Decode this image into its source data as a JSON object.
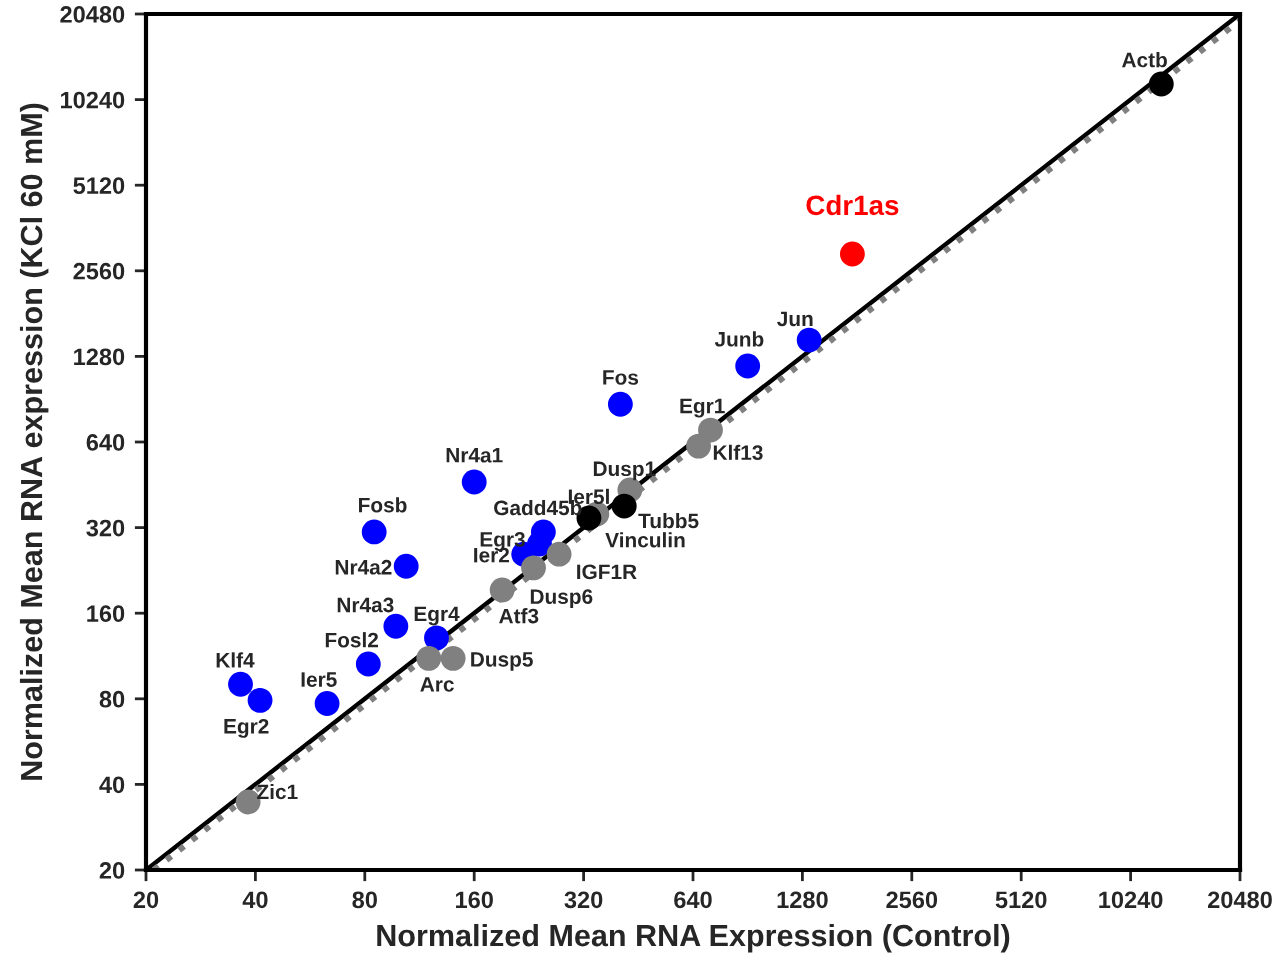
{
  "chart_data": {
    "type": "scatter",
    "xlabel": "Normalized Mean RNA Expression (Control)",
    "ylabel": "Normalized Mean RNA expression (KCl 60 mM)",
    "log": "xy",
    "xlim": [
      20,
      20480
    ],
    "ylim": [
      20,
      20480
    ],
    "xticks": [
      20,
      40,
      80,
      160,
      320,
      640,
      1280,
      2560,
      5120,
      10240,
      20480
    ],
    "yticks": [
      20,
      40,
      80,
      160,
      320,
      640,
      1280,
      2560,
      5120,
      10240,
      20480
    ],
    "grid": false,
    "marker": "circle",
    "series": [
      {
        "type": "line",
        "marker": "none",
        "color": "#000000",
        "line_style": "solid",
        "x": [
          20,
          20480
        ],
        "values": [
          20,
          20480
        ]
      },
      {
        "type": "line",
        "marker": "none",
        "color": "#808080",
        "line_style": "dotted",
        "x": [
          21,
          20480
        ],
        "values": [
          20,
          19450
        ]
      },
      {
        "color": "#0000ff",
        "x": [
          36.4,
          41.2,
          63,
          81.8,
          97.4,
          84.9,
          104,
          160,
          126,
          219,
          242,
          248,
          404,
          905,
          1336
        ],
        "values": [
          90,
          79,
          77,
          106,
          144,
          309,
          234,
          463,
          131,
          258,
          280,
          309,
          869,
          1184,
          1461
        ]
      },
      {
        "color": "#808080",
        "x": [
          38.2,
          120,
          140,
          191,
          233,
          274,
          348,
          429,
          715,
          663
        ],
        "values": [
          34.7,
          111,
          111,
          193,
          231,
          258,
          357,
          434,
          705,
          619
        ]
      },
      {
        "color": "#000000",
        "x": [
          331,
          414,
          12440
        ],
        "values": [
          346,
          381,
          11620
        ]
      },
      {
        "name": "Cdr1as",
        "color": "#ff0000",
        "x": [
          1757
        ],
        "values": [
          2933
        ]
      }
    ],
    "annotations": [
      {
        "text": "Zic1",
        "x": 38.2,
        "y": 34.7
      },
      {
        "text": "Klf4",
        "x": 36.4,
        "y": 90
      },
      {
        "text": "Egr2",
        "x": 41.2,
        "y": 79
      },
      {
        "text": "Ier5",
        "x": 63,
        "y": 77
      },
      {
        "text": "Fosl2",
        "x": 81.8,
        "y": 106
      },
      {
        "text": "Nr4a3",
        "x": 97.4,
        "y": 144
      },
      {
        "text": "Fosb",
        "x": 84.9,
        "y": 309
      },
      {
        "text": "Nr4a2",
        "x": 104,
        "y": 234
      },
      {
        "text": "Nr4a1",
        "x": 160,
        "y": 463
      },
      {
        "text": "Egr4",
        "x": 126,
        "y": 131
      },
      {
        "text": "Arc",
        "x": 120,
        "y": 111
      },
      {
        "text": "Dusp5",
        "x": 140,
        "y": 111
      },
      {
        "text": "Atf3",
        "x": 191,
        "y": 193
      },
      {
        "text": "Ier2",
        "x": 219,
        "y": 258
      },
      {
        "text": "Egr3",
        "x": 242,
        "y": 280
      },
      {
        "text": "Gadd45b",
        "x": 248,
        "y": 309
      },
      {
        "text": "Dusp6",
        "x": 233,
        "y": 231
      },
      {
        "text": "IGF1R",
        "x": 274,
        "y": 258
      },
      {
        "text": "Vinculin",
        "x": 348,
        "y": 357
      },
      {
        "text": "Ier5l",
        "x": 331,
        "y": 346
      },
      {
        "text": "Tubb5",
        "x": 414,
        "y": 381
      },
      {
        "text": "Dusp1",
        "x": 429,
        "y": 434
      },
      {
        "text": "Fos",
        "x": 404,
        "y": 869
      },
      {
        "text": "Egr1",
        "x": 715,
        "y": 705
      },
      {
        "text": "Klf13",
        "x": 663,
        "y": 619
      },
      {
        "text": "Junb",
        "x": 905,
        "y": 1184
      },
      {
        "text": "Jun",
        "x": 1336,
        "y": 1461
      },
      {
        "text": "Actb",
        "x": 12440,
        "y": 11620
      }
    ]
  }
}
